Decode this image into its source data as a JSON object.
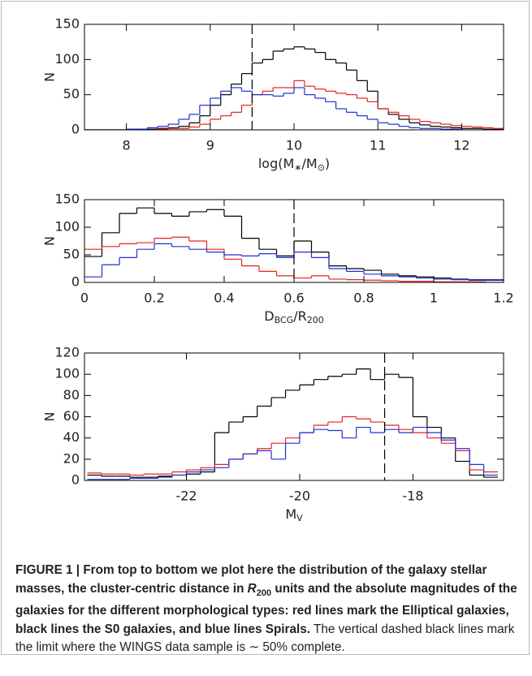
{
  "chart_data": [
    {
      "type": "histogram",
      "ylabel": "N",
      "xlabel": [
        {
          "text": "log(M"
        },
        {
          "text": "∗",
          "style": "sub"
        },
        {
          "text": "/M"
        },
        {
          "text": "⊙",
          "style": "sub"
        },
        {
          "text": ")"
        }
      ],
      "bins": [
        7.5,
        7.625,
        7.75,
        7.875,
        8.0,
        8.125,
        8.25,
        8.375,
        8.5,
        8.625,
        8.75,
        8.875,
        9.0,
        9.125,
        9.25,
        9.375,
        9.5,
        9.625,
        9.75,
        9.875,
        10.0,
        10.125,
        10.25,
        10.375,
        10.5,
        10.625,
        10.75,
        10.875,
        11.0,
        11.125,
        11.25,
        11.375,
        11.5,
        11.625,
        11.75,
        11.875,
        12.0,
        12.125,
        12.25,
        12.375,
        12.5
      ],
      "series": [
        {
          "name": "S0",
          "color": "#000000",
          "values": [
            0,
            0,
            0,
            0,
            0,
            1,
            1,
            2,
            3,
            5,
            10,
            20,
            35,
            50,
            65,
            80,
            95,
            100,
            112,
            115,
            118,
            115,
            110,
            100,
            95,
            85,
            70,
            55,
            30,
            22,
            15,
            10,
            7,
            5,
            4,
            3,
            2,
            2,
            1,
            1
          ]
        },
        {
          "name": "Elliptical",
          "color": "#e8201e",
          "values": [
            0,
            0,
            0,
            0,
            0,
            0,
            0,
            1,
            2,
            2,
            4,
            8,
            15,
            20,
            25,
            35,
            50,
            55,
            60,
            60,
            70,
            62,
            58,
            55,
            52,
            50,
            45,
            40,
            30,
            25,
            20,
            15,
            12,
            10,
            8,
            6,
            5,
            4,
            3,
            2
          ]
        },
        {
          "name": "Spiral",
          "color": "#1f2fd6",
          "values": [
            0,
            0,
            0,
            0,
            1,
            1,
            3,
            5,
            8,
            15,
            22,
            35,
            45,
            55,
            60,
            55,
            50,
            50,
            48,
            52,
            60,
            50,
            45,
            40,
            30,
            25,
            20,
            15,
            10,
            8,
            5,
            3,
            2,
            2,
            1,
            1,
            0,
            0,
            0,
            0
          ]
        }
      ],
      "xlim": [
        7.5,
        12.5
      ],
      "xticks": [
        8,
        9,
        10,
        11,
        12
      ],
      "ylim": [
        0,
        150
      ],
      "yticks": [
        0,
        50,
        100,
        150
      ],
      "limit_line": 9.5
    },
    {
      "type": "histogram",
      "ylabel": "N",
      "xlabel": [
        {
          "text": "D"
        },
        {
          "text": "BCG",
          "style": "sub"
        },
        {
          "text": "/R"
        },
        {
          "text": "200",
          "style": "sub"
        }
      ],
      "bins": [
        0,
        0.05,
        0.1,
        0.15,
        0.2,
        0.25,
        0.3,
        0.35,
        0.4,
        0.45,
        0.5,
        0.55,
        0.6,
        0.65,
        0.7,
        0.75,
        0.8,
        0.85,
        0.9,
        0.95,
        1.0,
        1.05,
        1.1,
        1.15,
        1.2
      ],
      "series": [
        {
          "name": "S0",
          "color": "#000000",
          "values": [
            47,
            90,
            125,
            135,
            125,
            120,
            128,
            132,
            120,
            80,
            60,
            48,
            75,
            55,
            30,
            25,
            22,
            15,
            12,
            10,
            8,
            6,
            4,
            4
          ]
        },
        {
          "name": "Elliptical",
          "color": "#e8201e",
          "values": [
            60,
            65,
            70,
            72,
            80,
            82,
            75,
            60,
            42,
            30,
            20,
            12,
            8,
            12,
            6,
            5,
            4,
            3,
            2,
            2,
            1,
            1,
            1,
            0
          ]
        },
        {
          "name": "Spiral",
          "color": "#1f2fd6",
          "values": [
            10,
            32,
            45,
            60,
            70,
            65,
            60,
            55,
            50,
            48,
            52,
            45,
            55,
            45,
            25,
            20,
            15,
            12,
            10,
            8,
            6,
            5,
            5,
            5
          ]
        }
      ],
      "xlim": [
        0,
        1.2
      ],
      "xticks": [
        0,
        0.2,
        0.4,
        0.6,
        0.8,
        1,
        1.2
      ],
      "ylim": [
        0,
        150
      ],
      "yticks": [
        0,
        50,
        100,
        150
      ],
      "limit_line": 0.6
    },
    {
      "type": "histogram",
      "ylabel": "N",
      "xlabel": [
        {
          "text": "M"
        },
        {
          "text": "V",
          "style": "sub"
        }
      ],
      "bins": [
        -23.75,
        -23.5,
        -23.25,
        -23.0,
        -22.75,
        -22.5,
        -22.25,
        -22.0,
        -21.75,
        -21.5,
        -21.25,
        -21.0,
        -20.75,
        -20.5,
        -20.25,
        -20.0,
        -19.75,
        -19.5,
        -19.25,
        -19.0,
        -18.75,
        -18.5,
        -18.25,
        -18.0,
        -17.75,
        -17.5,
        -17.25,
        -17.0,
        -16.75,
        -16.5
      ],
      "series": [
        {
          "name": "S0",
          "color": "#000000",
          "values": [
            5,
            4,
            4,
            3,
            3,
            4,
            5,
            6,
            8,
            45,
            55,
            60,
            70,
            78,
            85,
            90,
            95,
            98,
            100,
            105,
            95,
            100,
            97,
            60,
            50,
            40,
            18,
            5,
            3
          ]
        },
        {
          "name": "Elliptical",
          "color": "#e8201e",
          "values": [
            7,
            6,
            6,
            5,
            6,
            6,
            8,
            10,
            12,
            15,
            20,
            25,
            30,
            35,
            40,
            45,
            52,
            55,
            60,
            58,
            55,
            52,
            48,
            45,
            40,
            35,
            28,
            10,
            8
          ]
        },
        {
          "name": "Spiral",
          "color": "#1f2fd6",
          "values": [
            1,
            1,
            1,
            2,
            2,
            3,
            5,
            8,
            10,
            12,
            20,
            25,
            28,
            20,
            35,
            45,
            48,
            47,
            40,
            50,
            45,
            48,
            45,
            50,
            45,
            38,
            30,
            15,
            5
          ]
        }
      ],
      "xlim": [
        -23.8,
        -16.4
      ],
      "xticks": [
        -22,
        -20,
        -18
      ],
      "ylim": [
        0,
        120
      ],
      "yticks": [
        0,
        20,
        40,
        60,
        80,
        100,
        120
      ],
      "limit_line": -18.5
    }
  ],
  "caption": [
    {
      "text": "FIGURE 1 | From top to bottom we plot here the distribution of the galaxy stellar masses, the cluster-centric distance in ",
      "style": "bold"
    },
    {
      "text": "R",
      "style": "bold-italic"
    },
    {
      "text": "200",
      "style": "bold-sub"
    },
    {
      "text": " units and the absolute magnitudes of the galaxies for the different morphological types: red lines mark the Elliptical galaxies, black lines the S0 galaxies, and blue lines Spirals.",
      "style": "bold"
    },
    {
      "text": " The vertical dashed black lines mark the limit where the WINGS data sample is ∼ 50% complete."
    }
  ]
}
